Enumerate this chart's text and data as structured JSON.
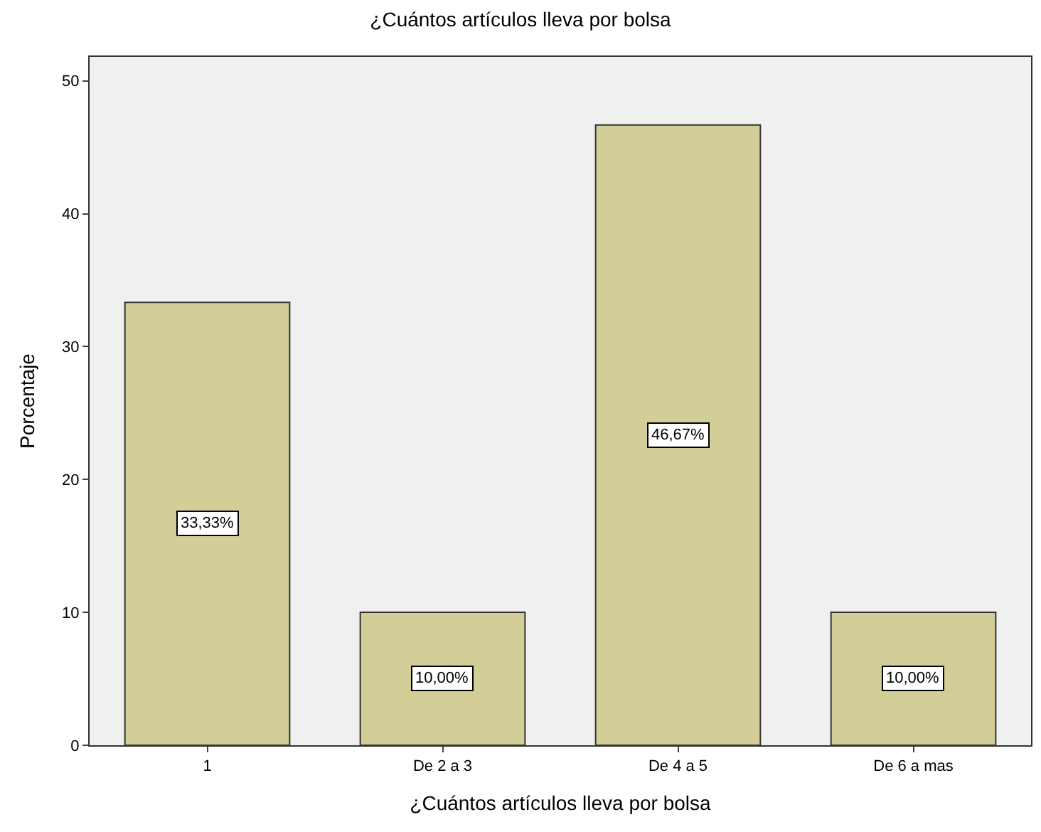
{
  "chart_data": {
    "type": "bar",
    "title": "¿Cuántos artículos lleva por bolsa",
    "xlabel": "¿Cuántos artículos lleva por bolsa",
    "ylabel": "Porcentaje",
    "categories": [
      "1",
      "De 2 a 3",
      "De 4 a 5",
      "De 6 a mas"
    ],
    "values": [
      33.33,
      10.0,
      46.67,
      10.0
    ],
    "value_labels": [
      "33,33%",
      "10,00%",
      "46,67%",
      "10,00%"
    ],
    "color": "#d3ce97",
    "ylim": [
      0,
      51.8
    ],
    "yticks": [
      0,
      10,
      20,
      30,
      40,
      50
    ],
    "grid": false,
    "legend": false
  }
}
